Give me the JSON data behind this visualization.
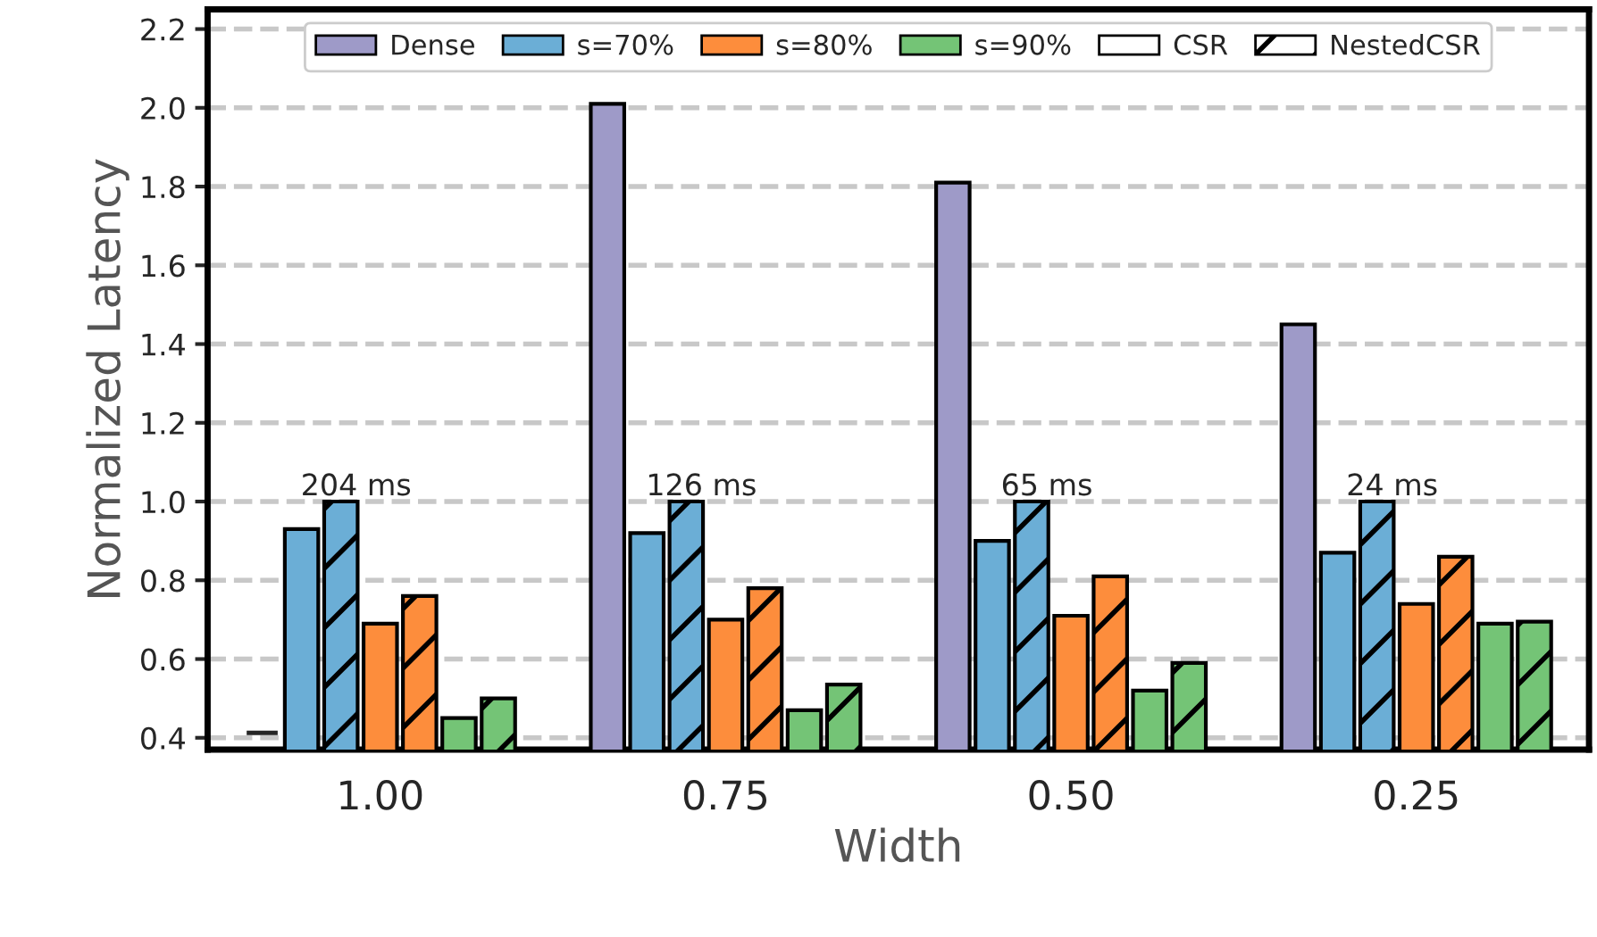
{
  "chart_data": {
    "type": "bar",
    "xlabel": "Width",
    "ylabel": "Normalized Latency",
    "categories": [
      "1.00",
      "0.75",
      "0.50",
      "0.25"
    ],
    "series": [
      {
        "name": "Dense",
        "color": "#9e9ac8",
        "values": [
          null,
          2.01,
          1.81,
          1.45
        ],
        "value_labels": [
          "—",
          null,
          null,
          null
        ]
      },
      {
        "name": "s=70%",
        "color": "#6baed6",
        "values": [
          0.93,
          0.92,
          0.9,
          0.87
        ]
      },
      {
        "color": "#6baed6",
        "values": [
          1.0,
          1.0,
          1.0,
          1.0
        ]
      },
      {
        "name": "s=80%",
        "color": "#fd8d3c",
        "values": [
          0.69,
          0.7,
          0.71,
          0.74
        ]
      },
      {
        "color": "#fd8d3c",
        "values": [
          0.76,
          0.78,
          0.81,
          0.86
        ]
      },
      {
        "name": "s=90%",
        "color": "#74c476",
        "values": [
          0.45,
          0.47,
          0.52,
          0.69
        ]
      },
      {
        "color": "#74c476",
        "values": [
          0.5,
          0.535,
          0.59,
          0.695
        ]
      },
      {
        "name": "CSR",
        "color": "#ffffff",
        "values": [
          null,
          null,
          null,
          null
        ]
      },
      {
        "name": "NestedCSR",
        "color": "#ffffff",
        "values": [
          null,
          null,
          null,
          null
        ]
      }
    ],
    "annotations": [
      "204 ms",
      "126 ms",
      "65 ms",
      "24 ms"
    ],
    "ylim": [
      0.37,
      2.25
    ],
    "yticks": [
      0.4,
      0.6,
      0.8,
      {
        "value": 1.0,
        "label": "1.0"
      },
      1.2,
      1.4,
      1.6,
      1.8,
      {
        "value": 2.0,
        "label": "2.0"
      },
      2.2
    ],
    "grid": "y",
    "legend": "top"
  }
}
